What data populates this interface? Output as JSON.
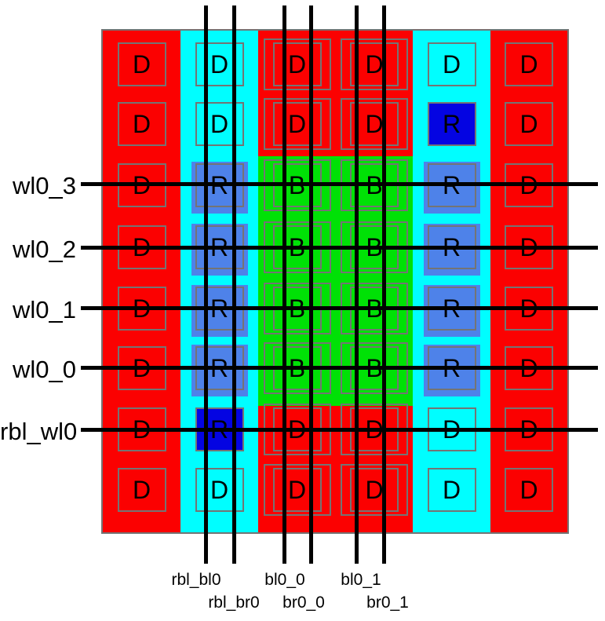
{
  "colors": {
    "dummy_red": "#fb0101",
    "replica_col_cyan": "#00feff",
    "bitcell_green": "#00e106",
    "replica_blue": "#4e82e9",
    "replica_dark_blue": "#0404e2",
    "outline_gray": "#747474",
    "line_black": "#000000"
  },
  "wordlines": [
    {
      "label": "wl0_3"
    },
    {
      "label": "wl0_2"
    },
    {
      "label": "wl0_1"
    },
    {
      "label": "wl0_0"
    },
    {
      "label": "rbl_wl0"
    }
  ],
  "bitlines": [
    {
      "label": "rbl_bl0"
    },
    {
      "label": "rbl_br0"
    },
    {
      "label": "bl0_0"
    },
    {
      "label": "br0_0"
    },
    {
      "label": "bl0_1"
    },
    {
      "label": "br0_1"
    }
  ],
  "grid": {
    "rows": [
      {
        "cells": [
          {
            "letter": "D",
            "fill": "red"
          },
          {
            "letter": "D",
            "fill": "cyan"
          },
          {
            "letter": "D",
            "fill": "red"
          },
          {
            "letter": "D",
            "fill": "red"
          },
          {
            "letter": "D",
            "fill": "cyan"
          },
          {
            "letter": "D",
            "fill": "red"
          }
        ]
      },
      {
        "cells": [
          {
            "letter": "D",
            "fill": "red"
          },
          {
            "letter": "D",
            "fill": "cyan"
          },
          {
            "letter": "D",
            "fill": "red"
          },
          {
            "letter": "D",
            "fill": "red"
          },
          {
            "letter": "R",
            "fill": "darkblue"
          },
          {
            "letter": "D",
            "fill": "red"
          }
        ]
      },
      {
        "cells": [
          {
            "letter": "D",
            "fill": "red"
          },
          {
            "letter": "R",
            "fill": "blue"
          },
          {
            "letter": "B",
            "fill": "green"
          },
          {
            "letter": "B",
            "fill": "green"
          },
          {
            "letter": "R",
            "fill": "blue"
          },
          {
            "letter": "D",
            "fill": "red"
          }
        ]
      },
      {
        "cells": [
          {
            "letter": "D",
            "fill": "red"
          },
          {
            "letter": "R",
            "fill": "blue"
          },
          {
            "letter": "B",
            "fill": "green"
          },
          {
            "letter": "B",
            "fill": "green"
          },
          {
            "letter": "R",
            "fill": "blue"
          },
          {
            "letter": "D",
            "fill": "red"
          }
        ]
      },
      {
        "cells": [
          {
            "letter": "D",
            "fill": "red"
          },
          {
            "letter": "R",
            "fill": "blue"
          },
          {
            "letter": "B",
            "fill": "green"
          },
          {
            "letter": "B",
            "fill": "green"
          },
          {
            "letter": "R",
            "fill": "blue"
          },
          {
            "letter": "D",
            "fill": "red"
          }
        ]
      },
      {
        "cells": [
          {
            "letter": "D",
            "fill": "red"
          },
          {
            "letter": "R",
            "fill": "blue"
          },
          {
            "letter": "B",
            "fill": "green"
          },
          {
            "letter": "B",
            "fill": "green"
          },
          {
            "letter": "R",
            "fill": "blue"
          },
          {
            "letter": "D",
            "fill": "red"
          }
        ]
      },
      {
        "cells": [
          {
            "letter": "D",
            "fill": "red"
          },
          {
            "letter": "R",
            "fill": "darkblue"
          },
          {
            "letter": "D",
            "fill": "red"
          },
          {
            "letter": "D",
            "fill": "red"
          },
          {
            "letter": "D",
            "fill": "cyan"
          },
          {
            "letter": "D",
            "fill": "red"
          }
        ]
      },
      {
        "cells": [
          {
            "letter": "D",
            "fill": "red"
          },
          {
            "letter": "D",
            "fill": "cyan"
          },
          {
            "letter": "D",
            "fill": "red"
          },
          {
            "letter": "D",
            "fill": "red"
          },
          {
            "letter": "D",
            "fill": "cyan"
          },
          {
            "letter": "D",
            "fill": "red"
          }
        ]
      }
    ]
  }
}
